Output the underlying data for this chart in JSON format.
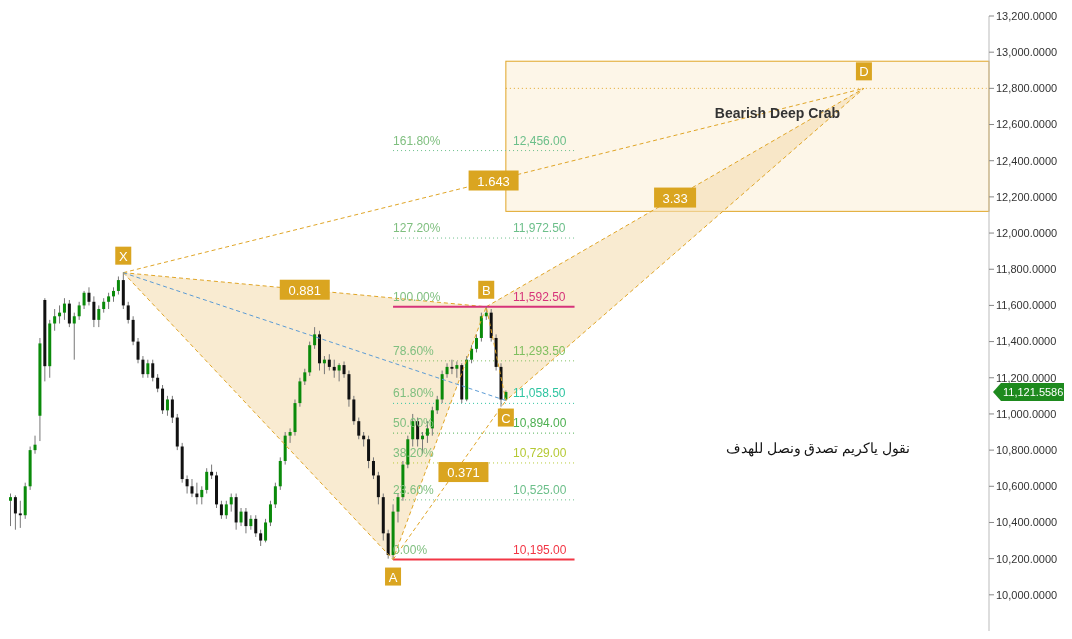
{
  "chart_data": {
    "type": "candlestick",
    "categories": [
      null,
      null,
      null,
      null,
      null,
      null,
      null,
      null,
      null,
      null,
      null,
      null,
      null,
      null,
      null,
      null,
      null,
      null,
      null,
      null,
      null,
      null,
      null,
      null,
      null,
      null,
      null,
      null,
      null,
      null,
      null,
      null,
      null,
      null,
      null,
      null,
      null,
      null,
      null,
      null,
      null,
      null,
      null,
      null,
      null,
      null,
      null,
      null,
      null,
      null,
      null,
      null,
      null,
      null,
      null,
      null,
      null,
      null,
      null,
      null,
      null,
      null,
      null,
      null,
      null,
      null,
      null,
      null,
      null,
      null,
      null,
      null,
      null,
      null,
      null,
      null,
      null,
      null,
      null,
      null,
      null,
      null,
      null,
      null,
      null,
      null,
      null,
      null,
      null,
      null,
      null,
      null,
      null,
      null,
      null,
      null,
      null,
      null,
      null,
      null,
      null,
      null,
      null,
      null,
      null,
      null,
      null,
      null,
      null,
      null,
      null,
      null,
      null,
      null,
      null,
      null,
      null,
      null,
      null,
      null,
      null,
      null,
      null,
      null,
      null,
      null,
      null,
      null,
      null,
      null,
      null,
      null,
      null,
      null,
      null,
      null,
      null,
      null,
      null,
      null,
      null,
      null,
      null,
      null,
      null,
      null,
      null,
      null,
      null,
      null,
      null,
      null,
      null,
      null,
      null,
      null,
      null,
      null,
      null,
      null,
      null,
      null,
      null,
      null,
      null,
      null,
      null,
      null,
      null,
      null,
      null,
      null,
      null,
      null,
      null,
      null,
      null,
      null,
      null,
      null,
      null,
      null,
      null,
      null,
      null,
      null,
      null,
      null,
      null,
      null,
      null,
      null,
      null,
      null,
      null,
      null,
      null,
      null,
      null,
      null
    ],
    "ohlc": [
      [
        10520,
        10560,
        10380,
        10540
      ],
      [
        10540,
        10550,
        10360,
        10450
      ],
      [
        10450,
        10520,
        10370,
        10440
      ],
      [
        10440,
        10620,
        10420,
        10600
      ],
      [
        10600,
        10820,
        10580,
        10800
      ],
      [
        10800,
        10880,
        10780,
        10830
      ],
      [
        10990,
        11420,
        10850,
        11390
      ],
      [
        11630,
        11640,
        11180,
        11264
      ],
      [
        11264,
        11520,
        11200,
        11500
      ],
      [
        11500,
        11580,
        11460,
        11540
      ],
      [
        11540,
        11600,
        11500,
        11560
      ],
      [
        11560,
        11640,
        11520,
        11610
      ],
      [
        11610,
        11630,
        11480,
        11500
      ],
      [
        11500,
        11560,
        11300,
        11540
      ],
      [
        11540,
        11620,
        11520,
        11600
      ],
      [
        11600,
        11680,
        11580,
        11670
      ],
      [
        11670,
        11700,
        11600,
        11620
      ],
      [
        11620,
        11650,
        11480,
        11520
      ],
      [
        11520,
        11600,
        11480,
        11580
      ],
      [
        11580,
        11640,
        11560,
        11620
      ],
      [
        11620,
        11670,
        11580,
        11650
      ],
      [
        11650,
        11700,
        11620,
        11680
      ],
      [
        11680,
        11760,
        11660,
        11740
      ],
      [
        11740,
        11781,
        11580,
        11600
      ],
      [
        11600,
        11620,
        11500,
        11520
      ],
      [
        11520,
        11540,
        11380,
        11400
      ],
      [
        11400,
        11420,
        11280,
        11300
      ],
      [
        11300,
        11320,
        11200,
        11220
      ],
      [
        11220,
        11300,
        11200,
        11280
      ],
      [
        11280,
        11300,
        11180,
        11200
      ],
      [
        11200,
        11220,
        11120,
        11140
      ],
      [
        11140,
        11160,
        11000,
        11020
      ],
      [
        11020,
        11100,
        10990,
        11080
      ],
      [
        11080,
        11100,
        10950,
        10980
      ],
      [
        10980,
        11000,
        10800,
        10820
      ],
      [
        10820,
        10840,
        10620,
        10640
      ],
      [
        10640,
        10660,
        10560,
        10600
      ],
      [
        10600,
        10640,
        10540,
        10560
      ],
      [
        10560,
        10620,
        10500,
        10540
      ],
      [
        10540,
        10600,
        10500,
        10580
      ],
      [
        10580,
        10700,
        10560,
        10680
      ],
      [
        10680,
        10720,
        10640,
        10660
      ],
      [
        10660,
        10680,
        10480,
        10500
      ],
      [
        10500,
        10520,
        10420,
        10440
      ],
      [
        10440,
        10520,
        10420,
        10500
      ],
      [
        10500,
        10560,
        10460,
        10540
      ],
      [
        10540,
        10560,
        10360,
        10400
      ],
      [
        10400,
        10480,
        10380,
        10460
      ],
      [
        10460,
        10480,
        10340,
        10380
      ],
      [
        10380,
        10440,
        10360,
        10420
      ],
      [
        10420,
        10440,
        10320,
        10340
      ],
      [
        10340,
        10360,
        10270,
        10300
      ],
      [
        10300,
        10420,
        10290,
        10400
      ],
      [
        10400,
        10520,
        10380,
        10500
      ],
      [
        10500,
        10620,
        10480,
        10600
      ],
      [
        10600,
        10760,
        10580,
        10740
      ],
      [
        10740,
        10900,
        10720,
        10880
      ],
      [
        10880,
        10920,
        10840,
        10900
      ],
      [
        10900,
        11080,
        10880,
        11060
      ],
      [
        11060,
        11200,
        11040,
        11180
      ],
      [
        11180,
        11250,
        11160,
        11230
      ],
      [
        11230,
        11400,
        11210,
        11380
      ],
      [
        11380,
        11480,
        11360,
        11440
      ],
      [
        11440,
        11460,
        11240,
        11280
      ],
      [
        11280,
        11320,
        11220,
        11300
      ],
      [
        11300,
        11330,
        11240,
        11260
      ],
      [
        11260,
        11300,
        11200,
        11240
      ],
      [
        11240,
        11280,
        11180,
        11270
      ],
      [
        11270,
        11290,
        11200,
        11220
      ],
      [
        11220,
        11240,
        11040,
        11080
      ],
      [
        11080,
        11100,
        10940,
        10960
      ],
      [
        10960,
        10980,
        10860,
        10880
      ],
      [
        10880,
        10900,
        10820,
        10860
      ],
      [
        10860,
        10880,
        10700,
        10740
      ],
      [
        10740,
        10760,
        10640,
        10660
      ],
      [
        10660,
        10680,
        10500,
        10540
      ],
      [
        10540,
        10560,
        10300,
        10340
      ],
      [
        10340,
        10360,
        10200,
        10220
      ],
      [
        10220,
        10500,
        10195,
        10460
      ],
      [
        10460,
        10560,
        10400,
        10540
      ],
      [
        10540,
        10740,
        10520,
        10720
      ],
      [
        10720,
        10880,
        10700,
        10860
      ],
      [
        10860,
        11000,
        10820,
        10960
      ],
      [
        10960,
        10980,
        10820,
        10860
      ],
      [
        10860,
        10900,
        10780,
        10880
      ],
      [
        10880,
        10960,
        10840,
        10920
      ],
      [
        10920,
        11040,
        10880,
        11020
      ],
      [
        11020,
        11100,
        11000,
        11080
      ],
      [
        11080,
        11240,
        11060,
        11220
      ],
      [
        11220,
        11280,
        11200,
        11260
      ],
      [
        11260,
        11300,
        11220,
        11250
      ],
      [
        11250,
        11290,
        11200,
        11270
      ],
      [
        11270,
        11280,
        11060,
        11080
      ],
      [
        11080,
        11320,
        11070,
        11300
      ],
      [
        11300,
        11380,
        11280,
        11360
      ],
      [
        11360,
        11440,
        11340,
        11420
      ],
      [
        11420,
        11560,
        11400,
        11540
      ],
      [
        11540,
        11592.5,
        11520,
        11560
      ],
      [
        11560,
        11580,
        11400,
        11420
      ],
      [
        11420,
        11440,
        11240,
        11260
      ],
      [
        11260,
        11280,
        11040,
        11080
      ],
      [
        11080,
        11130,
        11074,
        11121.5586
      ],
      null,
      null,
      null,
      null,
      null,
      null,
      null,
      null,
      null,
      null,
      null,
      null,
      null,
      null,
      null,
      null,
      null,
      null,
      null,
      null,
      null,
      null,
      null,
      null,
      null,
      null,
      null,
      null,
      null,
      null,
      null,
      null,
      null,
      null,
      null,
      null,
      null,
      null,
      null,
      null,
      null,
      null,
      null,
      null,
      null,
      null,
      null,
      null,
      null,
      null,
      null,
      null,
      null,
      null,
      null,
      null,
      null,
      null,
      null,
      null,
      null,
      null,
      null,
      null,
      null,
      null,
      null,
      null,
      null,
      null,
      null,
      null,
      null,
      null,
      null,
      null,
      null,
      null,
      null,
      null,
      null,
      null,
      null,
      null,
      null,
      null,
      null,
      null,
      null,
      null,
      null,
      null,
      null,
      null,
      null,
      null,
      null,
      null
    ],
    "series": [
      {
        "type": "line",
        "color": "#e0a526",
        "line_style": "dashed",
        "values": [
          null,
          null,
          null,
          null,
          null,
          null,
          null,
          null,
          null,
          null,
          null,
          null,
          null,
          null,
          null,
          null,
          null,
          null,
          null,
          null,
          null,
          null,
          null,
          11781,
          null,
          null,
          null,
          null,
          null,
          null,
          null,
          null,
          null,
          null,
          null,
          null,
          null,
          null,
          null,
          null,
          null,
          null,
          null,
          null,
          null,
          null,
          null,
          null,
          null,
          null,
          null,
          null,
          null,
          null,
          null,
          null,
          null,
          null,
          null,
          null,
          null,
          null,
          null,
          null,
          null,
          null,
          null,
          null,
          null,
          null,
          null,
          null,
          null,
          null,
          null,
          null,
          null,
          null,
          10195,
          null,
          null,
          null,
          null,
          null,
          null,
          null,
          null,
          null,
          null,
          null,
          null,
          null,
          null,
          null,
          null,
          null,
          null,
          11592.5,
          null,
          null,
          null,
          11074,
          null,
          null,
          null,
          null,
          null,
          null,
          null,
          null,
          null,
          null,
          null,
          null,
          null,
          null,
          null,
          null,
          null,
          null,
          null,
          null,
          null,
          null,
          null,
          null,
          null,
          null,
          null,
          null,
          null,
          null,
          null,
          null,
          null,
          null,
          null,
          null,
          null,
          null,
          null,
          null,
          null,
          null,
          null,
          null,
          null,
          null,
          null,
          null,
          null,
          null,
          null,
          null,
          null,
          null,
          null,
          null,
          null,
          null,
          null,
          null,
          null,
          null,
          null,
          null,
          null,
          null,
          null,
          null,
          null,
          null,
          null,
          null,
          12800,
          null,
          null,
          null,
          null,
          null,
          null,
          null,
          null,
          null,
          null,
          null,
          null,
          null,
          null,
          null,
          null,
          null,
          null,
          null,
          null,
          null,
          null,
          null,
          null,
          null
        ],
        "value_labels": [
          null,
          null,
          null,
          null,
          null,
          null,
          null,
          null,
          null,
          null,
          null,
          null,
          null,
          null,
          null,
          null,
          null,
          null,
          null,
          null,
          null,
          null,
          null,
          "X",
          null,
          null,
          null,
          null,
          null,
          null,
          null,
          null,
          null,
          null,
          null,
          null,
          null,
          null,
          null,
          null,
          null,
          null,
          null,
          null,
          null,
          null,
          null,
          null,
          null,
          null,
          null,
          null,
          null,
          null,
          null,
          null,
          null,
          null,
          null,
          null,
          null,
          null,
          null,
          null,
          null,
          null,
          null,
          null,
          null,
          null,
          null,
          null,
          null,
          null,
          null,
          null,
          null,
          null,
          "A",
          null,
          null,
          null,
          null,
          null,
          null,
          null,
          null,
          null,
          null,
          null,
          null,
          null,
          null,
          null,
          null,
          null,
          null,
          "B",
          null,
          null,
          null,
          "C",
          null,
          null,
          null,
          null,
          null,
          null,
          null,
          null,
          null,
          null,
          null,
          null,
          null,
          null,
          null,
          null,
          null,
          null,
          null,
          null,
          null,
          null,
          null,
          null,
          null,
          null,
          null,
          null,
          null,
          null,
          null,
          null,
          null,
          null,
          null,
          null,
          null,
          null,
          null,
          null,
          null,
          null,
          null,
          null,
          null,
          null,
          null,
          null,
          null,
          null,
          null,
          null,
          null,
          null,
          null,
          null,
          null,
          null,
          null,
          null,
          null,
          null,
          null,
          null,
          null,
          null,
          null,
          null,
          null,
          null,
          null,
          null,
          "D",
          null,
          null,
          null,
          null,
          null,
          null,
          null,
          null,
          null,
          null,
          null,
          null,
          null,
          null,
          null,
          null,
          null,
          null,
          null,
          null,
          null,
          null,
          null,
          null,
          null
        ]
      },
      {
        "type": "line",
        "color": "#5b9bd5",
        "line_style": "dashed",
        "values": [
          null,
          null,
          null,
          null,
          null,
          null,
          null,
          null,
          null,
          null,
          null,
          null,
          null,
          null,
          null,
          null,
          null,
          null,
          null,
          null,
          null,
          null,
          null,
          11781,
          null,
          null,
          null,
          null,
          null,
          null,
          null,
          null,
          null,
          null,
          null,
          null,
          null,
          null,
          null,
          null,
          null,
          null,
          null,
          null,
          null,
          null,
          null,
          null,
          null,
          null,
          null,
          null,
          null,
          null,
          null,
          null,
          null,
          null,
          null,
          null,
          null,
          null,
          null,
          null,
          null,
          null,
          null,
          null,
          null,
          null,
          null,
          null,
          null,
          null,
          null,
          null,
          null,
          null,
          null,
          null,
          null,
          null,
          null,
          null,
          null,
          null,
          null,
          null,
          null,
          null,
          null,
          null,
          null,
          null,
          null,
          null,
          null,
          null,
          null,
          null,
          null,
          11074,
          null,
          null,
          null,
          null,
          null,
          null,
          null,
          null,
          null,
          null,
          null,
          null,
          null,
          null,
          null,
          null,
          null,
          null,
          null,
          null,
          null,
          null,
          null,
          null,
          null,
          null,
          null,
          null,
          null,
          null,
          null,
          null,
          null,
          null,
          null,
          null,
          null,
          null,
          null,
          null,
          null,
          null,
          null,
          null,
          null,
          null,
          null,
          null,
          null,
          null,
          null,
          null,
          null,
          null,
          null,
          null,
          null,
          null,
          null,
          null,
          null,
          null,
          null,
          null,
          null,
          null,
          null,
          null,
          null,
          null,
          null,
          null,
          null,
          null,
          null,
          null,
          null,
          null,
          null,
          null,
          null,
          null,
          null,
          null,
          null,
          null,
          null,
          null,
          null,
          null,
          null,
          null,
          null,
          null,
          null,
          null,
          null,
          null
        ]
      }
    ],
    "ylim": [
      9800,
      13200
    ],
    "yticks": [
      {
        "value": 10000,
        "label": "10,000.0000"
      },
      {
        "value": 10200,
        "label": "10,200.0000"
      },
      {
        "value": 10400,
        "label": "10,400.0000"
      },
      {
        "value": 10600,
        "label": "10,600.0000"
      },
      {
        "value": 10800,
        "label": "10,800.0000"
      },
      {
        "value": 11000,
        "label": "11,000.0000"
      },
      {
        "value": 11200,
        "label": "11,200.0000"
      },
      {
        "value": 11400,
        "label": "11,400.0000"
      },
      {
        "value": 11600,
        "label": "11,600.0000"
      },
      {
        "value": 11800,
        "label": "11,800.0000"
      },
      {
        "value": 12000,
        "label": "12,000.0000"
      },
      {
        "value": 12200,
        "label": "12,200.0000"
      },
      {
        "value": 12400,
        "label": "12,400.0000"
      },
      {
        "value": 12600,
        "label": "12,600.0000"
      },
      {
        "value": 12800,
        "label": "12,800.0000"
      },
      {
        "value": 13000,
        "label": "13,000.0000"
      },
      {
        "value": 13200,
        "label": "13,200.0000"
      }
    ],
    "tick_labels": "y",
    "ref_lines": [
      {
        "axis": "y",
        "value": 10195,
        "label": "10,195.00",
        "color": "#f23645",
        "line_style": "solid"
      },
      {
        "axis": "y",
        "value": 10525,
        "label": "10,525.00",
        "color": "#6cbf8a",
        "line_style": "dotted"
      },
      {
        "axis": "y",
        "value": 10729,
        "label": "10,729.00",
        "color": "#b5c934",
        "line_style": "dotted"
      },
      {
        "axis": "y",
        "value": 10894,
        "label": "10,894.00",
        "color": "#4caf50",
        "line_style": "dotted"
      },
      {
        "axis": "y",
        "value": 11058.5,
        "label": "11,058.50",
        "color": "#2ec4a0",
        "line_style": "dotted"
      },
      {
        "axis": "y",
        "value": 11293.5,
        "label": "11,293.50",
        "color": "#7fbf5f",
        "line_style": "dotted"
      },
      {
        "axis": "y",
        "value": 11592.5,
        "label": "11,592.50",
        "color": "#d6337a",
        "line_style": "solid"
      },
      {
        "axis": "y",
        "value": 11972.5,
        "label": "11,972.50",
        "color": "#6cbf8a",
        "line_style": "dotted"
      },
      {
        "axis": "y",
        "value": 12456,
        "label": "12,456.00",
        "color": "#6cbf8a",
        "line_style": "dotted"
      },
      {
        "axis": "y",
        "value": 12800,
        "color": "#e0a526",
        "line_style": "dotted"
      }
    ],
    "bands": [
      {
        "axis": "y",
        "from": 12120,
        "to": 12950,
        "label": "Bearish Deep Crab",
        "color": "#fdf6e8"
      }
    ],
    "annotations": [
      "0.881",
      "1.643",
      "0.371",
      "3.33",
      "نقول ياكريم تصدق ونصل للهدف",
      "11,121.5586",
      {
        "text": "0.00%",
        "y": 10195
      },
      {
        "text": "23.60%",
        "y": 10525
      },
      {
        "text": "38.20%",
        "y": 10729
      },
      {
        "text": "50.00%",
        "y": 10894
      },
      {
        "text": "61.80%",
        "y": 11058.5
      },
      {
        "text": "78.60%",
        "y": 11293.5
      },
      {
        "text": "100.00%",
        "y": 11592.5
      },
      {
        "text": "127.20%",
        "y": 11972.5
      },
      {
        "text": "161.80%",
        "y": 12456
      }
    ]
  }
}
